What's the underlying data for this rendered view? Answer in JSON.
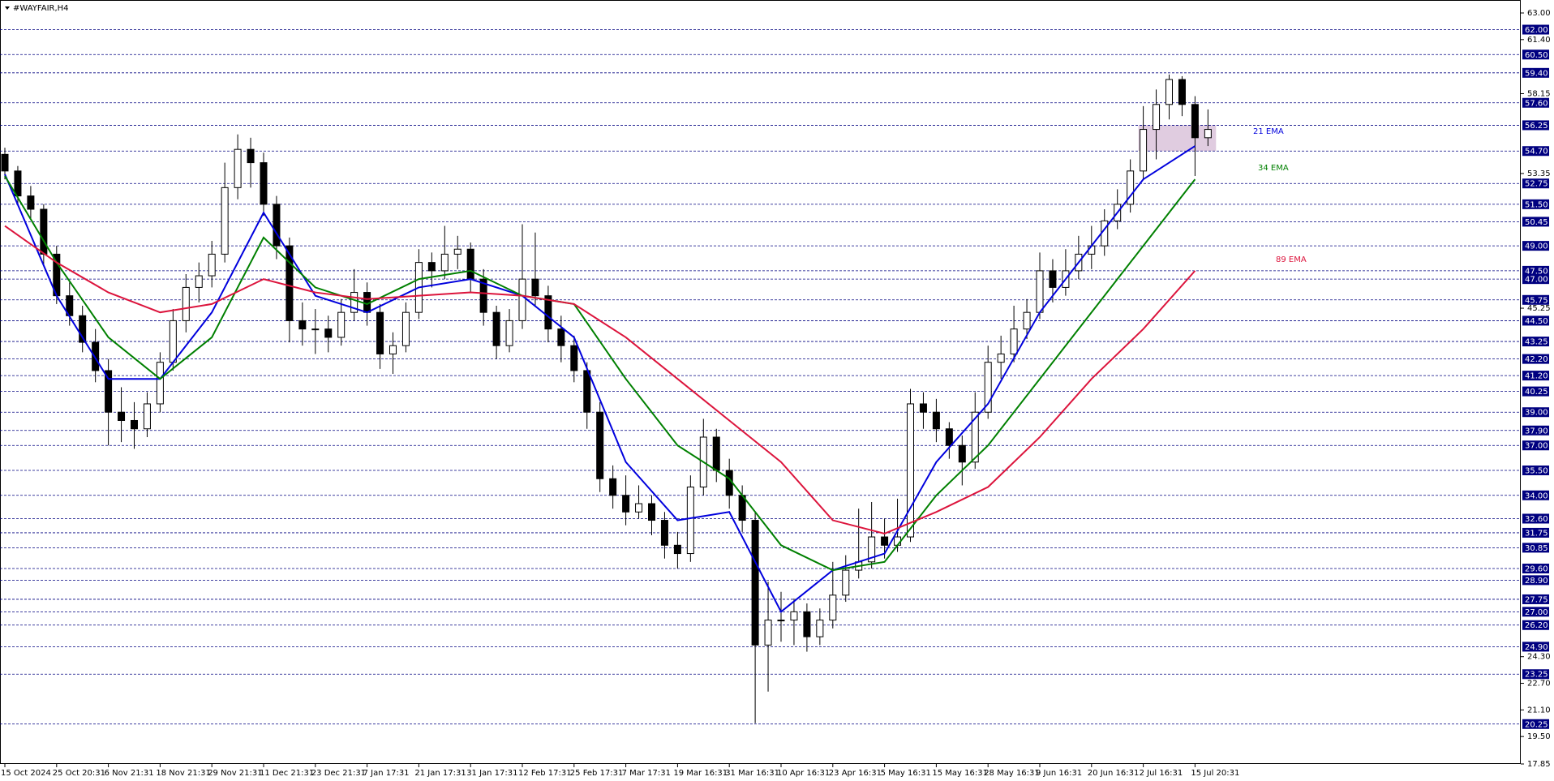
{
  "chart_data": {
    "type": "candlestick",
    "title": "#WAYFAIR,H4",
    "ylim": [
      17.85,
      63
    ],
    "yticks": [
      {
        "value": 63,
        "label": "63.00"
      },
      {
        "value": 61.4,
        "label": "61.40"
      },
      {
        "value": 58.15,
        "label": "58.15"
      },
      {
        "value": 53.35,
        "label": "53.35"
      },
      {
        "value": 45.25,
        "label": "45.25"
      },
      {
        "value": 24.3,
        "label": "24.30"
      },
      {
        "value": 22.7,
        "label": "22.70"
      },
      {
        "value": 21.1,
        "label": "21.10"
      },
      {
        "value": 19.5,
        "label": "19.50"
      },
      {
        "value": 17.85,
        "label": "17.85"
      }
    ],
    "levels": [
      {
        "value": 62,
        "label": "62.00"
      },
      {
        "value": 60.5,
        "label": "60.50"
      },
      {
        "value": 59.4,
        "label": "59.40"
      },
      {
        "value": 57.6,
        "label": "57.60"
      },
      {
        "value": 56.25,
        "label": "56.25"
      },
      {
        "value": 54.7,
        "label": "54.70"
      },
      {
        "value": 52.75,
        "label": "52.75"
      },
      {
        "value": 51.5,
        "label": "51.50"
      },
      {
        "value": 50.45,
        "label": "50.45"
      },
      {
        "value": 49,
        "label": "49.00"
      },
      {
        "value": 47.5,
        "label": "47.50"
      },
      {
        "value": 47,
        "label": "47.00"
      },
      {
        "value": 45.75,
        "label": "45.75"
      },
      {
        "value": 44.5,
        "label": "44.50"
      },
      {
        "value": 43.25,
        "label": "43.25"
      },
      {
        "value": 42.2,
        "label": "42.20"
      },
      {
        "value": 41.2,
        "label": "41.20"
      },
      {
        "value": 40.25,
        "label": "40.25"
      },
      {
        "value": 39,
        "label": "39.00"
      },
      {
        "value": 37.9,
        "label": "37.90"
      },
      {
        "value": 37,
        "label": "37.00"
      },
      {
        "value": 35.5,
        "label": "35.50"
      },
      {
        "value": 34,
        "label": "34.00"
      },
      {
        "value": 32.6,
        "label": "32.60"
      },
      {
        "value": 31.75,
        "label": "31.75"
      },
      {
        "value": 30.85,
        "label": "30.85"
      },
      {
        "value": 29.6,
        "label": "29.60"
      },
      {
        "value": 28.9,
        "label": "28.90"
      },
      {
        "value": 27.75,
        "label": "27.75"
      },
      {
        "value": 27,
        "label": "27.00"
      },
      {
        "value": 26.2,
        "label": "26.20"
      },
      {
        "value": 24.9,
        "label": "24.90"
      },
      {
        "value": 23.25,
        "label": "23.25"
      },
      {
        "value": 20.25,
        "label": "20.25"
      }
    ],
    "level_color": "#000080",
    "candle_color": "#000000",
    "categories": [
      "15 Oct 2024",
      null,
      null,
      null,
      "25 Oct 20:31",
      null,
      null,
      null,
      "6 Nov 21:31",
      null,
      null,
      null,
      "18 Nov 21:31",
      null,
      null,
      null,
      "29 Nov 21:31",
      null,
      null,
      null,
      "11 Dec 21:31",
      null,
      null,
      null,
      "23 Dec 21:31",
      null,
      null,
      null,
      "7 Jan 17:31",
      null,
      null,
      null,
      "21 Jan 17:31",
      null,
      null,
      null,
      "31 Jan 17:31",
      null,
      null,
      null,
      "12 Feb 17:31",
      null,
      null,
      null,
      "25 Feb 17:31",
      null,
      null,
      null,
      "7 Mar 17:31",
      null,
      null,
      null,
      "19 Mar 16:31",
      null,
      null,
      null,
      "31 Mar 16:31",
      null,
      null,
      null,
      "10 Apr 16:31",
      null,
      null,
      null,
      "23 Apr 16:31",
      null,
      null,
      null,
      "5 May 16:31",
      null,
      null,
      null,
      "15 May 16:31",
      null,
      null,
      null,
      "28 May 16:31",
      null,
      null,
      null,
      "9 Jun 16:31",
      null,
      null,
      null,
      "20 Jun 16:31",
      null,
      null,
      null,
      "2 Jul 16:31",
      null,
      null,
      null,
      "15 Jul 20:31",
      null
    ],
    "ohlc": [
      [
        54.5,
        54.9,
        53.0,
        53.5
      ],
      [
        53.5,
        53.8,
        51.5,
        52.0
      ],
      [
        52.0,
        52.6,
        50.6,
        51.2
      ],
      [
        51.2,
        51.5,
        47.8,
        48.5
      ],
      [
        48.5,
        49.0,
        45.5,
        46.0
      ],
      [
        46.0,
        46.8,
        44.2,
        44.8
      ],
      [
        44.8,
        45.4,
        42.6,
        43.2
      ],
      [
        43.2,
        44.0,
        40.8,
        41.5
      ],
      [
        41.5,
        42.2,
        37.0,
        39.0
      ],
      [
        39.0,
        40.5,
        37.2,
        38.5
      ],
      [
        38.5,
        39.6,
        36.8,
        38.0
      ],
      [
        38.0,
        40.2,
        37.5,
        39.5
      ],
      [
        39.5,
        42.6,
        39.0,
        42.0
      ],
      [
        42.0,
        45.2,
        41.5,
        44.5
      ],
      [
        44.5,
        47.3,
        43.8,
        46.5
      ],
      [
        46.5,
        48.0,
        45.6,
        47.2
      ],
      [
        47.2,
        49.3,
        46.5,
        48.5
      ],
      [
        48.5,
        54.0,
        48.0,
        52.5
      ],
      [
        52.5,
        55.7,
        51.8,
        54.8
      ],
      [
        54.8,
        55.5,
        52.5,
        54.0
      ],
      [
        54.0,
        54.6,
        50.8,
        51.5
      ],
      [
        51.5,
        52.0,
        48.2,
        49.0
      ],
      [
        49.0,
        49.5,
        43.2,
        44.5
      ],
      [
        44.5,
        45.6,
        43.0,
        44.0
      ],
      [
        44.0,
        45.2,
        42.5,
        44.0
      ],
      [
        44.0,
        44.8,
        42.6,
        43.5
      ],
      [
        43.5,
        45.8,
        43.0,
        45.0
      ],
      [
        45.0,
        47.6,
        44.5,
        46.2
      ],
      [
        46.2,
        46.8,
        44.2,
        45.0
      ],
      [
        45.0,
        45.5,
        41.6,
        42.5
      ],
      [
        42.5,
        43.8,
        41.3,
        43.0
      ],
      [
        43.0,
        45.6,
        42.6,
        45.0
      ],
      [
        45.0,
        48.8,
        44.6,
        48.0
      ],
      [
        48.0,
        48.6,
        46.5,
        47.5
      ],
      [
        47.5,
        50.2,
        47.0,
        48.5
      ],
      [
        48.5,
        49.6,
        47.6,
        48.8
      ],
      [
        48.8,
        49.2,
        46.2,
        47.0
      ],
      [
        47.0,
        47.6,
        44.2,
        45.0
      ],
      [
        45.0,
        45.4,
        42.2,
        43.0
      ],
      [
        43.0,
        45.2,
        42.6,
        44.5
      ],
      [
        44.5,
        50.3,
        44.0,
        47.0
      ],
      [
        47.0,
        49.8,
        45.4,
        46.0
      ],
      [
        46.0,
        46.6,
        43.2,
        44.0
      ],
      [
        44.0,
        44.8,
        42.0,
        43.0
      ],
      [
        43.0,
        43.6,
        40.8,
        41.5
      ],
      [
        41.5,
        42.0,
        38.0,
        39.0
      ],
      [
        39.0,
        39.6,
        34.2,
        35.0
      ],
      [
        35.0,
        35.8,
        33.2,
        34.0
      ],
      [
        34.0,
        35.2,
        32.2,
        33.0
      ],
      [
        33.0,
        34.6,
        32.6,
        33.5
      ],
      [
        33.5,
        34.0,
        31.6,
        32.5
      ],
      [
        32.5,
        33.0,
        30.2,
        31.0
      ],
      [
        31.0,
        31.8,
        29.6,
        30.5
      ],
      [
        30.5,
        35.2,
        30.0,
        34.5
      ],
      [
        34.5,
        38.6,
        34.0,
        37.5
      ],
      [
        37.5,
        38.0,
        34.8,
        35.5
      ],
      [
        35.5,
        36.2,
        33.2,
        34.0
      ],
      [
        34.0,
        34.6,
        31.8,
        32.5
      ],
      [
        32.5,
        33.0,
        20.3,
        25.0
      ],
      [
        25.0,
        28.8,
        22.2,
        26.5
      ],
      [
        26.5,
        28.2,
        25.2,
        26.5
      ],
      [
        26.5,
        27.8,
        25.0,
        27.0
      ],
      [
        27.0,
        27.5,
        24.6,
        25.5
      ],
      [
        25.5,
        27.2,
        25.0,
        26.5
      ],
      [
        26.5,
        30.0,
        26.0,
        28.0
      ],
      [
        28.0,
        30.4,
        27.6,
        29.5
      ],
      [
        29.5,
        33.2,
        29.0,
        30.0
      ],
      [
        30.0,
        33.6,
        29.6,
        31.5
      ],
      [
        31.5,
        32.6,
        30.2,
        31.0
      ],
      [
        31.0,
        33.8,
        30.6,
        31.5
      ],
      [
        31.5,
        40.4,
        31.2,
        39.5
      ],
      [
        39.5,
        40.2,
        38.0,
        39.0
      ],
      [
        39.0,
        39.8,
        37.2,
        38.0
      ],
      [
        38.0,
        38.4,
        36.2,
        37.0
      ],
      [
        37.0,
        37.6,
        34.6,
        36.0
      ],
      [
        36.0,
        40.2,
        35.6,
        39.0
      ],
      [
        39.0,
        43.0,
        38.6,
        42.0
      ],
      [
        42.0,
        43.6,
        41.0,
        42.5
      ],
      [
        42.5,
        45.4,
        42.0,
        44.0
      ],
      [
        44.0,
        45.8,
        43.4,
        45.0
      ],
      [
        45.0,
        48.6,
        44.6,
        47.5
      ],
      [
        47.5,
        48.2,
        45.6,
        46.5
      ],
      [
        46.5,
        48.8,
        46.0,
        47.5
      ],
      [
        47.5,
        49.6,
        47.0,
        48.5
      ],
      [
        48.5,
        50.2,
        47.6,
        49.0
      ],
      [
        49.0,
        51.2,
        48.4,
        50.5
      ],
      [
        50.5,
        52.4,
        50.0,
        51.5
      ],
      [
        51.5,
        54.2,
        51.0,
        53.5
      ],
      [
        53.5,
        57.4,
        53.0,
        56.0
      ],
      [
        56.0,
        58.4,
        54.2,
        57.5
      ],
      [
        57.5,
        59.3,
        56.6,
        59.0
      ],
      [
        59.0,
        59.2,
        56.8,
        57.5
      ],
      [
        57.5,
        58.0,
        53.2,
        55.5
      ],
      [
        55.5,
        57.2,
        55.0,
        56.0
      ]
    ],
    "lines": [
      {
        "name": "21 EMA",
        "color": "#0000dd",
        "x": [
          0,
          4,
          8,
          12,
          16,
          20,
          24,
          28,
          32,
          36,
          40,
          44,
          48,
          52,
          56,
          60,
          64,
          68,
          72,
          76,
          80,
          84,
          88,
          92
        ],
        "values": [
          53.3,
          46.0,
          41.0,
          41.0,
          45.0,
          51.0,
          46.0,
          45.0,
          46.5,
          47.0,
          46.0,
          43.5,
          36.0,
          32.5,
          33.0,
          27.0,
          29.5,
          30.5,
          36.0,
          39.5,
          45.0,
          49.0,
          53.0,
          55.0
        ]
      },
      {
        "name": "34 EMA",
        "color": "#008000",
        "x": [
          0,
          4,
          8,
          12,
          16,
          20,
          24,
          28,
          32,
          36,
          40,
          44,
          48,
          52,
          56,
          60,
          64,
          68,
          72,
          76,
          80,
          84,
          88,
          92
        ],
        "values": [
          53.2,
          48.0,
          43.5,
          41.0,
          43.5,
          49.5,
          46.5,
          45.5,
          47.0,
          47.5,
          46.0,
          45.5,
          41.0,
          37.0,
          35.0,
          31.0,
          29.5,
          30.0,
          34.0,
          37.0,
          41.0,
          45.0,
          49.0,
          53.0
        ]
      },
      {
        "name": "89 EMA",
        "color": "#dc143c",
        "x": [
          0,
          4,
          8,
          12,
          16,
          20,
          24,
          28,
          32,
          36,
          40,
          44,
          48,
          52,
          56,
          60,
          64,
          68,
          72,
          76,
          80,
          84,
          88,
          92
        ],
        "values": [
          50.2,
          48.0,
          46.2,
          45.0,
          45.5,
          47.0,
          46.2,
          45.8,
          46.0,
          46.2,
          46.0,
          45.5,
          43.5,
          41.0,
          38.5,
          36.0,
          32.5,
          31.7,
          33.0,
          34.5,
          37.5,
          41.0,
          44.0,
          47.5
        ]
      }
    ],
    "zone": {
      "x": [
        88,
        94
      ],
      "y": [
        54.7,
        56.25
      ],
      "color": "#d8bfd8"
    }
  }
}
